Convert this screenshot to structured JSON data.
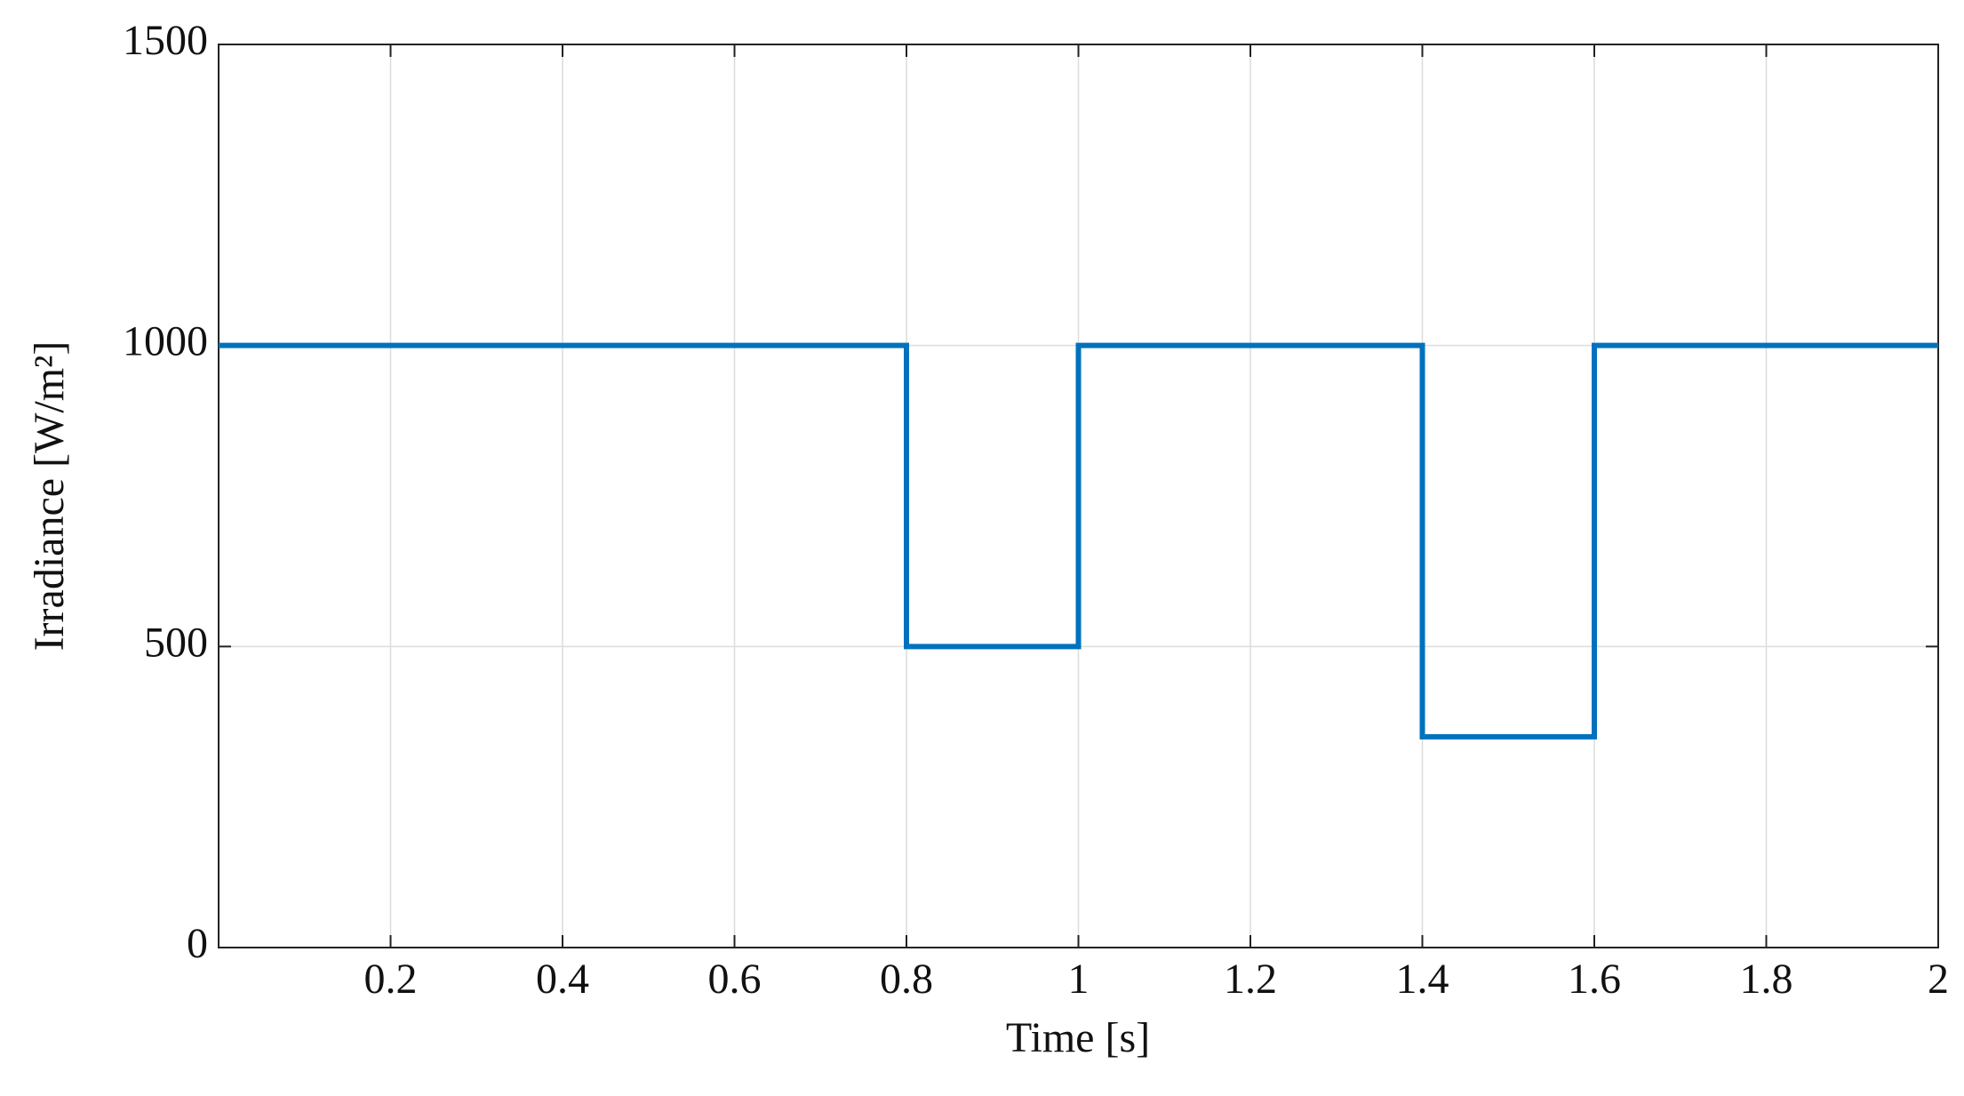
{
  "chart_data": {
    "type": "line",
    "x_label": "Time [s]",
    "y_label": "Irradiance [W/m²]",
    "x": [
      0,
      0.8,
      0.8,
      1,
      1,
      1.4,
      1.4,
      1.6,
      1.6,
      2
    ],
    "series": [
      {
        "name": "Irradiance",
        "color": "#0072bd",
        "values": [
          1000,
          1000,
          500,
          500,
          1000,
          1000,
          350,
          350,
          1000,
          1000
        ]
      }
    ],
    "xlim": [
      0,
      2
    ],
    "xticks": [
      0.2,
      0.4,
      0.6,
      0.8,
      1,
      1.2,
      1.4,
      1.6,
      1.8,
      2
    ],
    "ylim": [
      0,
      1500
    ],
    "yticks": [
      0,
      500,
      1000,
      1500
    ],
    "grid": true
  }
}
